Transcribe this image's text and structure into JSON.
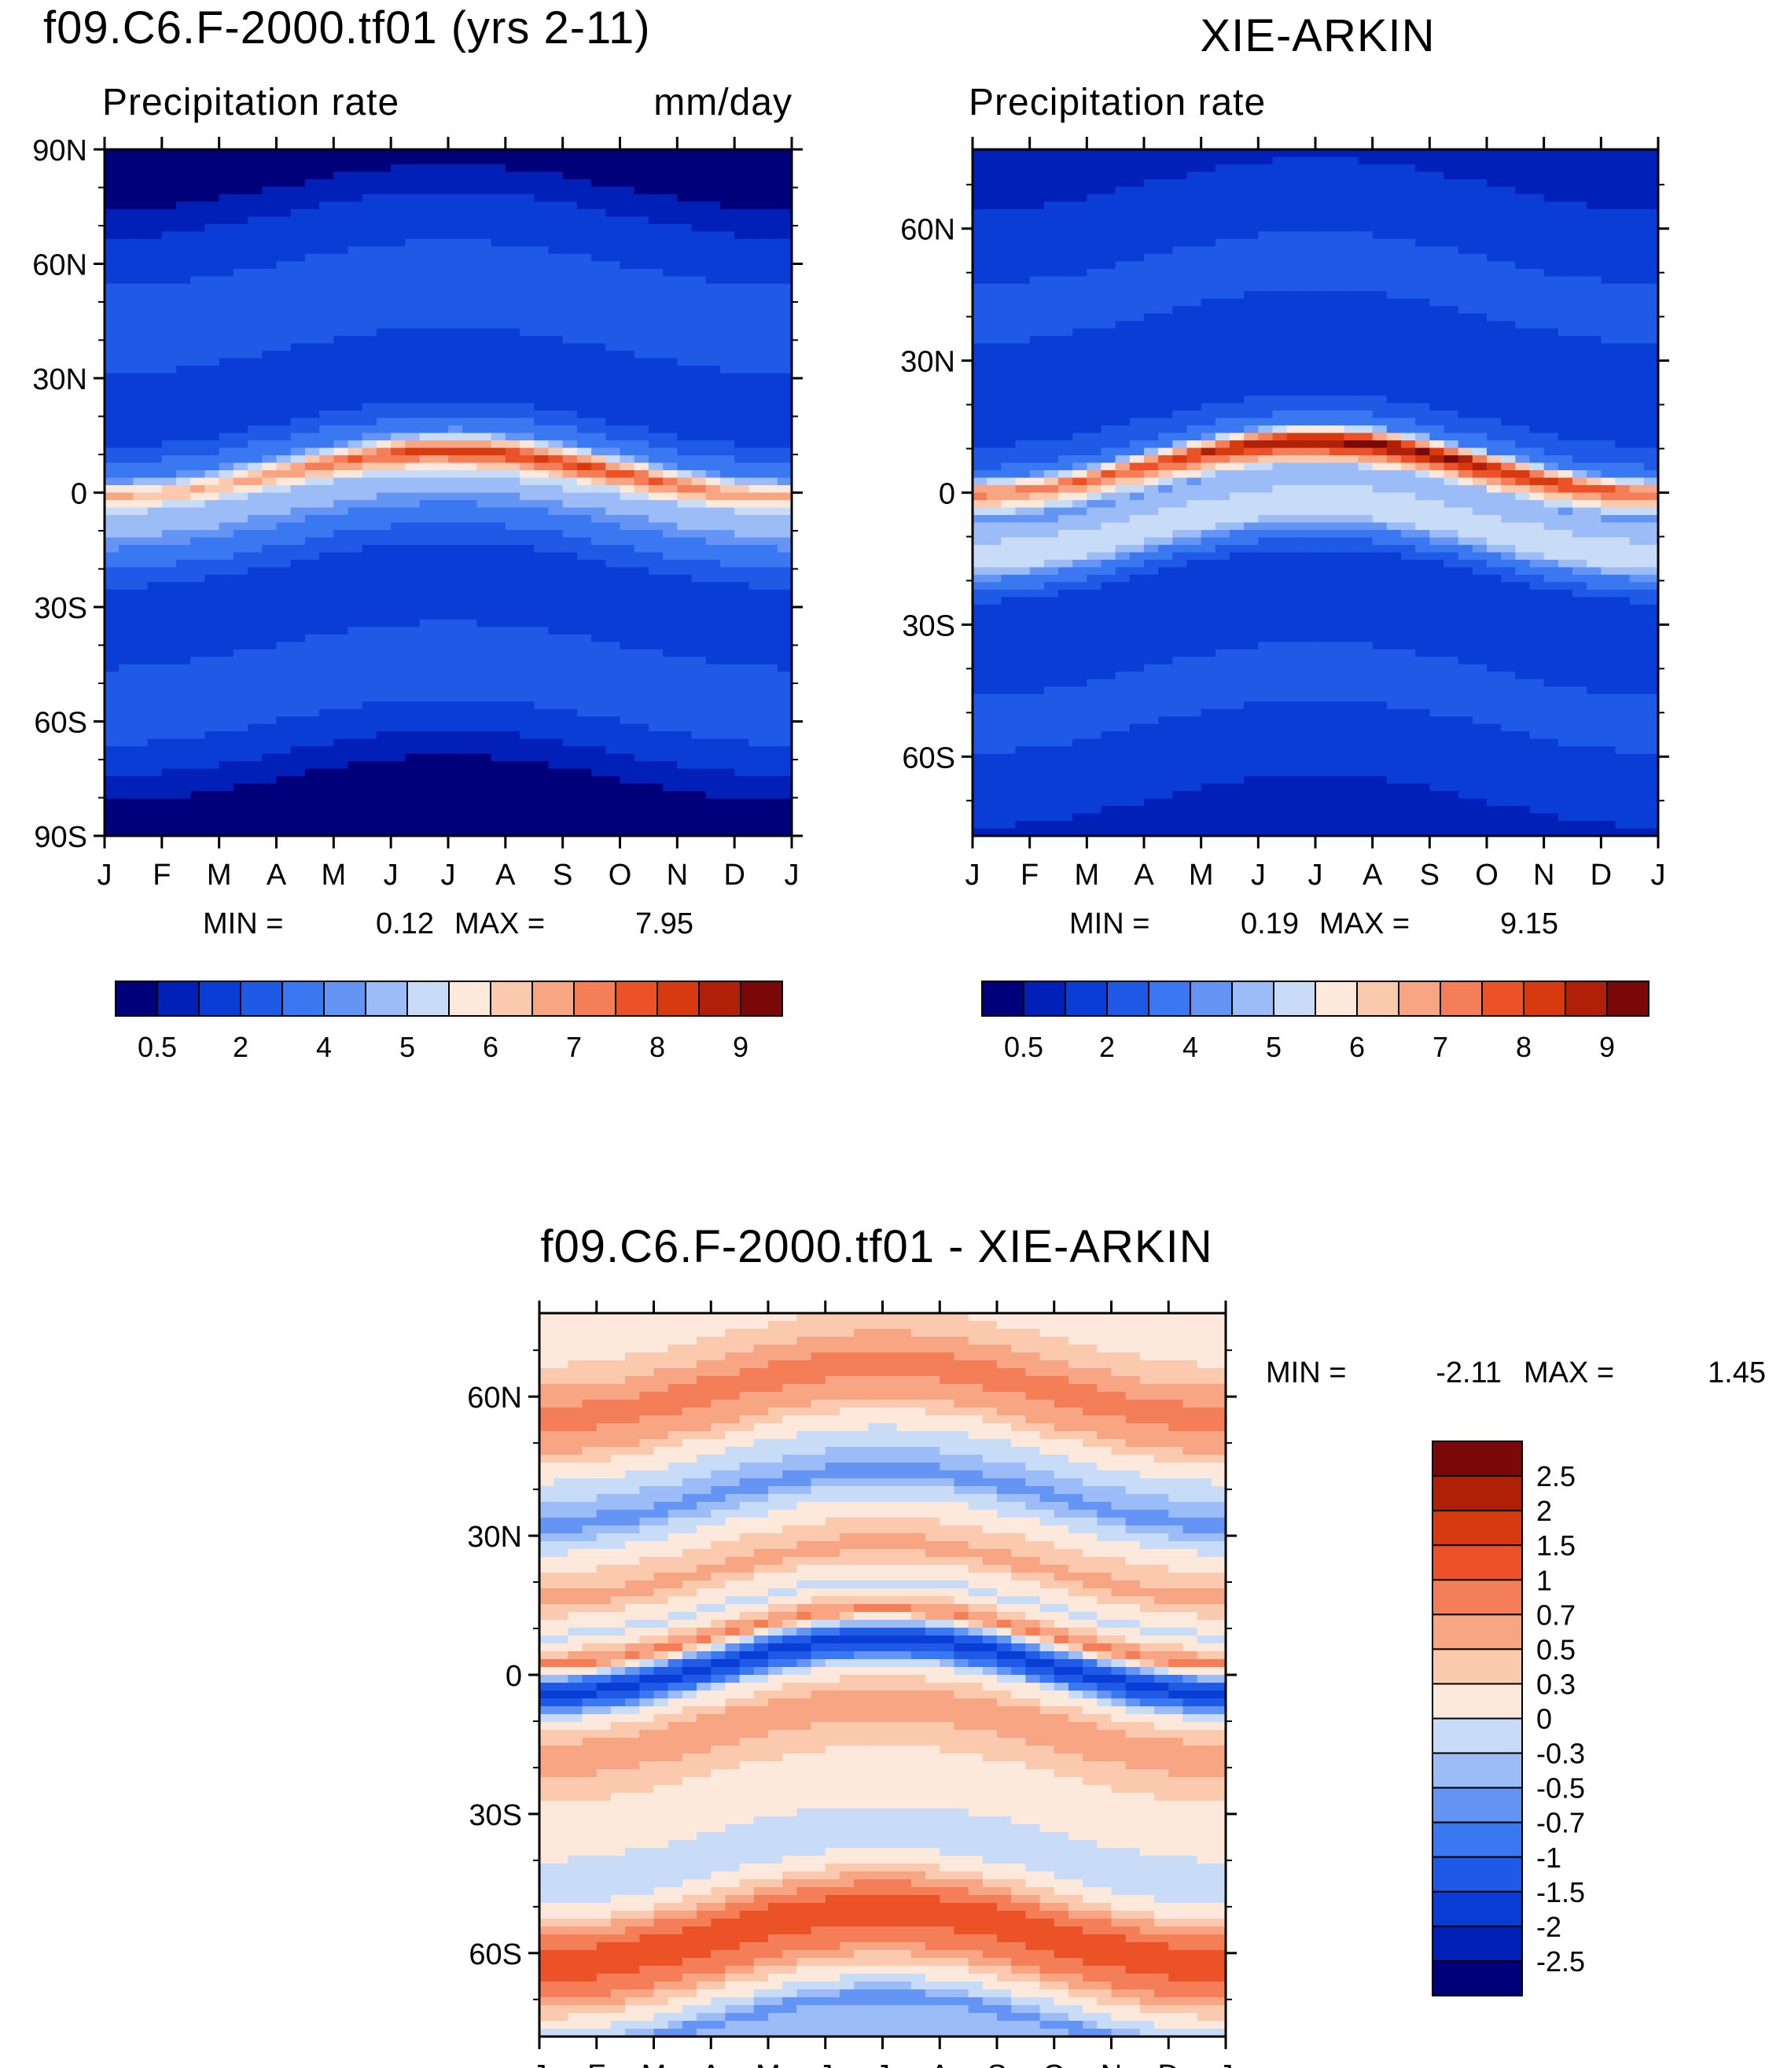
{
  "chart_data": [
    {
      "type": "heatmap",
      "title": "f09.C6.F-2000.tf01 (yrs 2-11)",
      "subtitle_left": "Precipitation rate",
      "subtitle_right": "mm/day",
      "x_ticks": [
        "J",
        "F",
        "M",
        "A",
        "M",
        "J",
        "J",
        "A",
        "S",
        "O",
        "N",
        "D",
        "J"
      ],
      "y_ticks": [
        "90N",
        "60N",
        "30N",
        "0",
        "30S",
        "60S",
        "90S"
      ],
      "y_values": [
        90,
        60,
        30,
        0,
        -30,
        -60,
        -90
      ],
      "ylim": [
        -90,
        90
      ],
      "min_label": "MIN =",
      "min_value": "0.12",
      "max_label": "MAX =",
      "max_value": "7.95",
      "colorbar_labels": [
        "0.5",
        "2",
        "4",
        "5",
        "6",
        "7",
        "8",
        "9"
      ],
      "zonal_profile": [
        {
          "lat": 90,
          "v": 0.2
        },
        {
          "lat": 80,
          "v": 0.5
        },
        {
          "lat": 70,
          "v": 1.2
        },
        {
          "lat": 60,
          "v": 2.0
        },
        {
          "lat": 50,
          "v": 2.6
        },
        {
          "lat": 40,
          "v": 2.4
        },
        {
          "lat": 30,
          "v": 1.0
        },
        {
          "lat": 20,
          "v": 1.5
        },
        {
          "lat": 10,
          "v": 4.0
        },
        {
          "lat": 5,
          "v": 7.5
        },
        {
          "lat": 0,
          "v": 5.0
        },
        {
          "lat": -5,
          "v": 4.6
        },
        {
          "lat": -10,
          "v": 3.8
        },
        {
          "lat": -20,
          "v": 1.8
        },
        {
          "lat": -30,
          "v": 1.2
        },
        {
          "lat": -40,
          "v": 2.0
        },
        {
          "lat": -50,
          "v": 2.6
        },
        {
          "lat": -60,
          "v": 2.0
        },
        {
          "lat": -70,
          "v": 0.8
        },
        {
          "lat": -80,
          "v": 0.2
        },
        {
          "lat": -90,
          "v": 0.12
        }
      ]
    },
    {
      "type": "heatmap",
      "title": "XIE-ARKIN",
      "subtitle_left": "Precipitation rate",
      "x_ticks": [
        "J",
        "F",
        "M",
        "A",
        "M",
        "J",
        "J",
        "A",
        "S",
        "O",
        "N",
        "D",
        "J"
      ],
      "y_ticks": [
        "60N",
        "30N",
        "0",
        "30S",
        "60S"
      ],
      "y_values": [
        60,
        30,
        0,
        -30,
        -60
      ],
      "ylim": [
        -78,
        78
      ],
      "min_label": "MIN =",
      "min_value": "0.19",
      "max_label": "MAX =",
      "max_value": "9.15",
      "colorbar_labels": [
        "0.5",
        "2",
        "4",
        "5",
        "6",
        "7",
        "8",
        "9"
      ],
      "zonal_profile": [
        {
          "lat": 78,
          "v": 0.5
        },
        {
          "lat": 70,
          "v": 1.0
        },
        {
          "lat": 60,
          "v": 1.6
        },
        {
          "lat": 50,
          "v": 2.2
        },
        {
          "lat": 40,
          "v": 2.0
        },
        {
          "lat": 30,
          "v": 1.0
        },
        {
          "lat": 20,
          "v": 1.2
        },
        {
          "lat": 10,
          "v": 3.5
        },
        {
          "lat": 6,
          "v": 8.5
        },
        {
          "lat": 0,
          "v": 4.5
        },
        {
          "lat": -5,
          "v": 5.0
        },
        {
          "lat": -10,
          "v": 5.5
        },
        {
          "lat": -20,
          "v": 1.5
        },
        {
          "lat": -30,
          "v": 1.2
        },
        {
          "lat": -40,
          "v": 2.0
        },
        {
          "lat": -50,
          "v": 2.2
        },
        {
          "lat": -60,
          "v": 1.5
        },
        {
          "lat": -70,
          "v": 1.0
        },
        {
          "lat": -78,
          "v": 0.5
        }
      ]
    },
    {
      "type": "heatmap",
      "title": "f09.C6.F-2000.tf01 - XIE-ARKIN",
      "x_ticks": [
        "J",
        "F",
        "M",
        "A",
        "M",
        "J",
        "J",
        "A",
        "S",
        "O",
        "N",
        "D",
        "J"
      ],
      "y_ticks": [
        "60N",
        "30N",
        "0",
        "30S",
        "60S"
      ],
      "y_values": [
        60,
        30,
        0,
        -30,
        -60
      ],
      "ylim": [
        -78,
        78
      ],
      "min_label": "MIN =",
      "min_value": "-2.11",
      "max_label": "MAX =",
      "max_value": "1.45",
      "colorbar_labels": [
        "2.5",
        "2",
        "1.5",
        "1",
        "0.7",
        "0.5",
        "0.3",
        "0",
        "-0.3",
        "-0.5",
        "-0.7",
        "-1",
        "-1.5",
        "-2",
        "-2.5"
      ],
      "zonal_profile": [
        {
          "lat": 78,
          "v": 0.1
        },
        {
          "lat": 70,
          "v": 0.4
        },
        {
          "lat": 62,
          "v": 0.8
        },
        {
          "lat": 55,
          "v": 0.6
        },
        {
          "lat": 45,
          "v": -0.2
        },
        {
          "lat": 38,
          "v": -0.6
        },
        {
          "lat": 30,
          "v": 0.2
        },
        {
          "lat": 22,
          "v": 0.6
        },
        {
          "lat": 14,
          "v": -0.1
        },
        {
          "lat": 8,
          "v": 0.8
        },
        {
          "lat": 2,
          "v": -1.8
        },
        {
          "lat": -4,
          "v": 0.1
        },
        {
          "lat": -10,
          "v": 0.6
        },
        {
          "lat": -16,
          "v": 0.5
        },
        {
          "lat": -24,
          "v": 0.2
        },
        {
          "lat": -32,
          "v": 0.1
        },
        {
          "lat": -40,
          "v": -0.3
        },
        {
          "lat": -48,
          "v": 0.4
        },
        {
          "lat": -56,
          "v": 1.3
        },
        {
          "lat": -64,
          "v": 0.7
        },
        {
          "lat": -70,
          "v": 0.1
        },
        {
          "lat": -75,
          "v": -0.6
        },
        {
          "lat": -78,
          "v": -0.4
        }
      ]
    }
  ],
  "colors": {
    "seq": [
      "#00007a",
      "#0020b8",
      "#0a3cd6",
      "#1e5ae6",
      "#3a78f2",
      "#6495f5",
      "#9bbcf7",
      "#c8dcf8",
      "#fde8dc",
      "#fbc9ae",
      "#f8a584",
      "#f47e57",
      "#ec5227",
      "#d63a0e",
      "#b02008",
      "#7a0808"
    ],
    "div": [
      "#7a0808",
      "#b02008",
      "#d63a0e",
      "#ec5227",
      "#f47e57",
      "#f8a584",
      "#fbc9ae",
      "#fde8dc",
      "#c8dcf8",
      "#9bbcf7",
      "#6495f5",
      "#3a78f2",
      "#1e5ae6",
      "#0a3cd6",
      "#0020b8",
      "#00007a"
    ]
  }
}
